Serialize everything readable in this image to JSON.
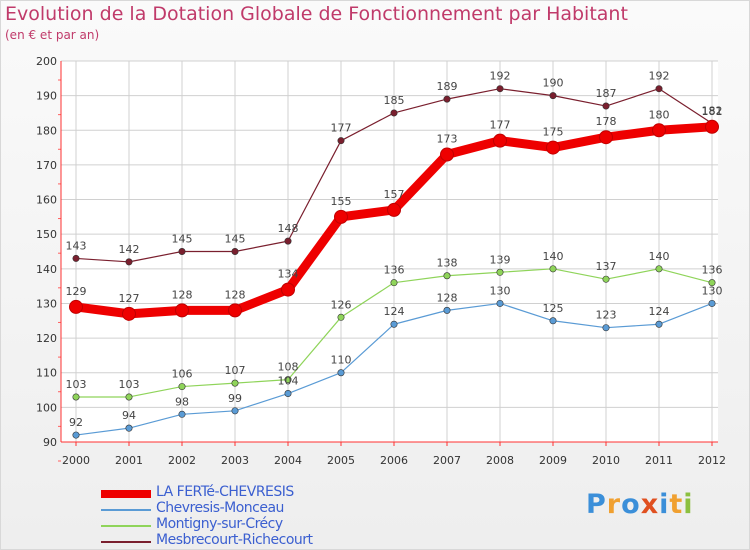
{
  "title": "Evolution de la Dotation Globale de Fonctionnement par Habitant",
  "subtitle": "(en € et par an)",
  "colors": {
    "title": "#c03a6a",
    "legend_text": "#3b5fd0",
    "axis": "#ff3030",
    "grid": "#d0d0d0"
  },
  "chart_data": {
    "type": "line",
    "title": "Evolution de la Dotation Globale de Fonctionnement par Habitant",
    "subtitle": "(en € et par an)",
    "xlabel": "",
    "ylabel": "",
    "categories": [
      "2000",
      "2001",
      "2002",
      "2003",
      "2004",
      "2005",
      "2006",
      "2007",
      "2008",
      "2009",
      "2010",
      "2011",
      "2012"
    ],
    "ylim": [
      90,
      200
    ],
    "yticks": [
      90,
      100,
      110,
      120,
      130,
      140,
      150,
      160,
      170,
      180,
      190,
      200
    ],
    "grid": true,
    "legend_position": "bottom-left",
    "series": [
      {
        "name": "Mesbrecourt-Richecourt",
        "color": "#7a1f2e",
        "values": [
          143,
          142,
          145,
          145,
          148,
          177,
          185,
          189,
          192,
          190,
          187,
          192,
          182
        ]
      },
      {
        "name": "Montigny-sur-Crécy",
        "color": "#8fd45a",
        "values": [
          103,
          103,
          106,
          107,
          108,
          126,
          136,
          138,
          139,
          140,
          137,
          140,
          136
        ]
      },
      {
        "name": "Chevresis-Monceau",
        "color": "#5a9bd5",
        "values": [
          92,
          94,
          98,
          99,
          104,
          110,
          124,
          128,
          130,
          125,
          123,
          124,
          130
        ]
      },
      {
        "name": "LA FERTé-CHEVRESIS",
        "color": "#ee0000",
        "values": [
          129,
          127,
          128,
          128,
          134,
          155,
          157,
          173,
          177,
          175,
          178,
          180,
          181
        ]
      }
    ],
    "legend_order": [
      "LA FERTé-CHEVRESIS",
      "Chevresis-Monceau",
      "Montigny-sur-Crécy",
      "Mesbrecourt-Richecourt"
    ]
  },
  "legend": {
    "items": [
      "LA FERTé-CHEVRESIS",
      "Chevresis-Monceau",
      "Montigny-sur-Crécy",
      "Mesbrecourt-Richecourt"
    ]
  },
  "logo": {
    "text": "Proxiti",
    "letters": [
      "P",
      "r",
      "o",
      "x",
      "i",
      "t",
      "i"
    ],
    "letter_colors": [
      "#3b8fd9",
      "#f0a030",
      "#3b8fd9",
      "#e05020",
      "#3b8fd9",
      "#f0a030",
      "#8cc040"
    ]
  }
}
